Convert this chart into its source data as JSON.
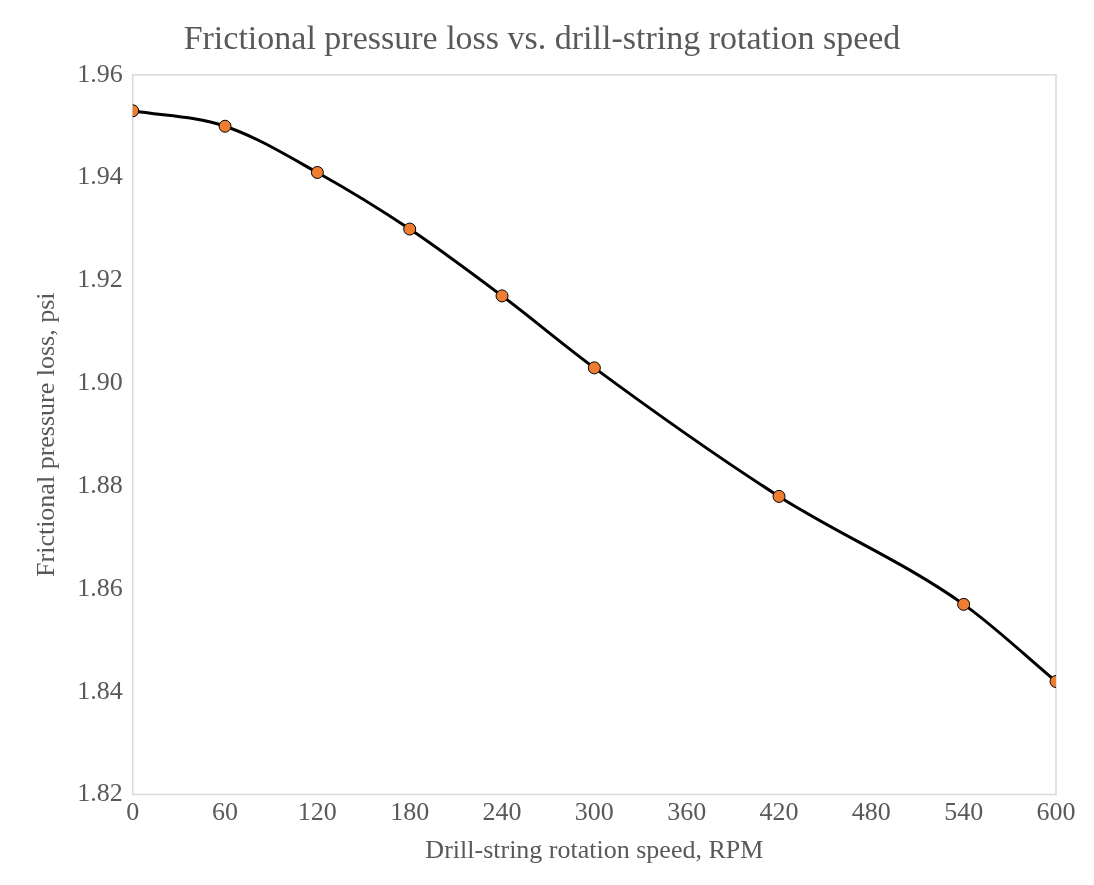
{
  "chart_data": {
    "type": "line",
    "title": "Frictional pressure loss vs. drill-string rotation speed",
    "xlabel": "Drill-string rotation speed, RPM",
    "ylabel": "Frictional pressure loss, psi",
    "x": [
      0,
      60,
      120,
      180,
      240,
      300,
      420,
      540,
      600
    ],
    "series": [
      {
        "color": "#000000",
        "values": [
          1.953,
          1.95,
          1.941,
          1.93,
          1.917,
          1.903,
          1.878,
          1.857,
          1.842
        ]
      }
    ],
    "xlim": [
      0,
      600
    ],
    "xticks": [
      0,
      60,
      120,
      180,
      240,
      300,
      360,
      420,
      480,
      540,
      600
    ],
    "ylim": [
      1.82,
      1.96
    ],
    "yticks": [
      1.82,
      1.84,
      1.86,
      1.88,
      {
        "value": 1.9,
        "label": "1.90"
      },
      1.92,
      1.94,
      1.96
    ],
    "grid": false,
    "legend": false,
    "marker": "circle",
    "line_style": "solid"
  }
}
